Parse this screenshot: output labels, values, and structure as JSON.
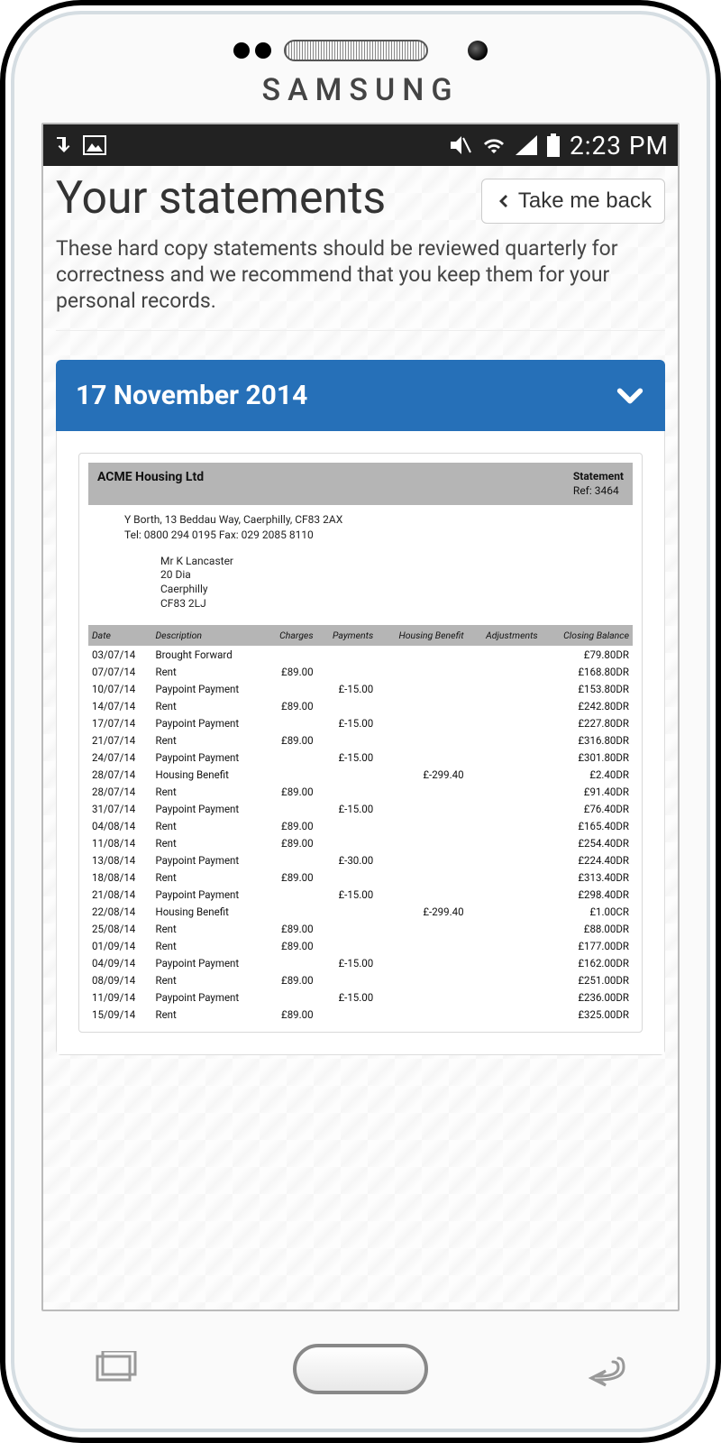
{
  "device": {
    "brand": "SAMSUNG"
  },
  "statusbar": {
    "time": "2:23 PM"
  },
  "header": {
    "title": "Your statements",
    "back_label": "Take me back",
    "intro": "These hard copy statements should be reviewed quarterly for correctness and we recommend that you keep them for your personal records."
  },
  "accordion": {
    "date_label": "17 November 2014"
  },
  "statement": {
    "company": "ACME Housing Ltd",
    "stmt_title": "Statement",
    "ref_label": "Ref: 3464",
    "address_line": "Y Borth, 13 Beddau Way, Caerphilly, CF83 2AX",
    "tel_line": "Tel: 0800 294 0195 Fax: 029 2085 8110",
    "recipient": [
      "Mr K Lancaster",
      "20 Dia",
      "Caerphilly",
      "CF83 2LJ"
    ],
    "columns": [
      "Date",
      "Description",
      "Charges",
      "Payments",
      "Housing Benefit",
      "Adjustments",
      "Closing Balance"
    ],
    "rows": [
      [
        "03/07/14",
        "Brought Forward",
        "",
        "",
        "",
        "",
        "£79.80DR"
      ],
      [
        "07/07/14",
        "Rent",
        "£89.00",
        "",
        "",
        "",
        "£168.80DR"
      ],
      [
        "10/07/14",
        "Paypoint Payment",
        "",
        "£-15.00",
        "",
        "",
        "£153.80DR"
      ],
      [
        "14/07/14",
        "Rent",
        "£89.00",
        "",
        "",
        "",
        "£242.80DR"
      ],
      [
        "17/07/14",
        "Paypoint Payment",
        "",
        "£-15.00",
        "",
        "",
        "£227.80DR"
      ],
      [
        "21/07/14",
        "Rent",
        "£89.00",
        "",
        "",
        "",
        "£316.80DR"
      ],
      [
        "24/07/14",
        "Paypoint Payment",
        "",
        "£-15.00",
        "",
        "",
        "£301.80DR"
      ],
      [
        "28/07/14",
        "Housing Benefit",
        "",
        "",
        "£-299.40",
        "",
        "£2.40DR"
      ],
      [
        "28/07/14",
        "Rent",
        "£89.00",
        "",
        "",
        "",
        "£91.40DR"
      ],
      [
        "31/07/14",
        "Paypoint Payment",
        "",
        "£-15.00",
        "",
        "",
        "£76.40DR"
      ],
      [
        "04/08/14",
        "Rent",
        "£89.00",
        "",
        "",
        "",
        "£165.40DR"
      ],
      [
        "11/08/14",
        "Rent",
        "£89.00",
        "",
        "",
        "",
        "£254.40DR"
      ],
      [
        "13/08/14",
        "Paypoint Payment",
        "",
        "£-30.00",
        "",
        "",
        "£224.40DR"
      ],
      [
        "18/08/14",
        "Rent",
        "£89.00",
        "",
        "",
        "",
        "£313.40DR"
      ],
      [
        "21/08/14",
        "Paypoint Payment",
        "",
        "£-15.00",
        "",
        "",
        "£298.40DR"
      ],
      [
        "22/08/14",
        "Housing Benefit",
        "",
        "",
        "£-299.40",
        "",
        "£1.00CR"
      ],
      [
        "25/08/14",
        "Rent",
        "£89.00",
        "",
        "",
        "",
        "£88.00DR"
      ],
      [
        "01/09/14",
        "Rent",
        "£89.00",
        "",
        "",
        "",
        "£177.00DR"
      ],
      [
        "04/09/14",
        "Paypoint Payment",
        "",
        "£-15.00",
        "",
        "",
        "£162.00DR"
      ],
      [
        "08/09/14",
        "Rent",
        "£89.00",
        "",
        "",
        "",
        "£251.00DR"
      ],
      [
        "11/09/14",
        "Paypoint Payment",
        "",
        "£-15.00",
        "",
        "",
        "£236.00DR"
      ],
      [
        "15/09/14",
        "Rent",
        "£89.00",
        "",
        "",
        "",
        "£325.00DR"
      ]
    ]
  }
}
